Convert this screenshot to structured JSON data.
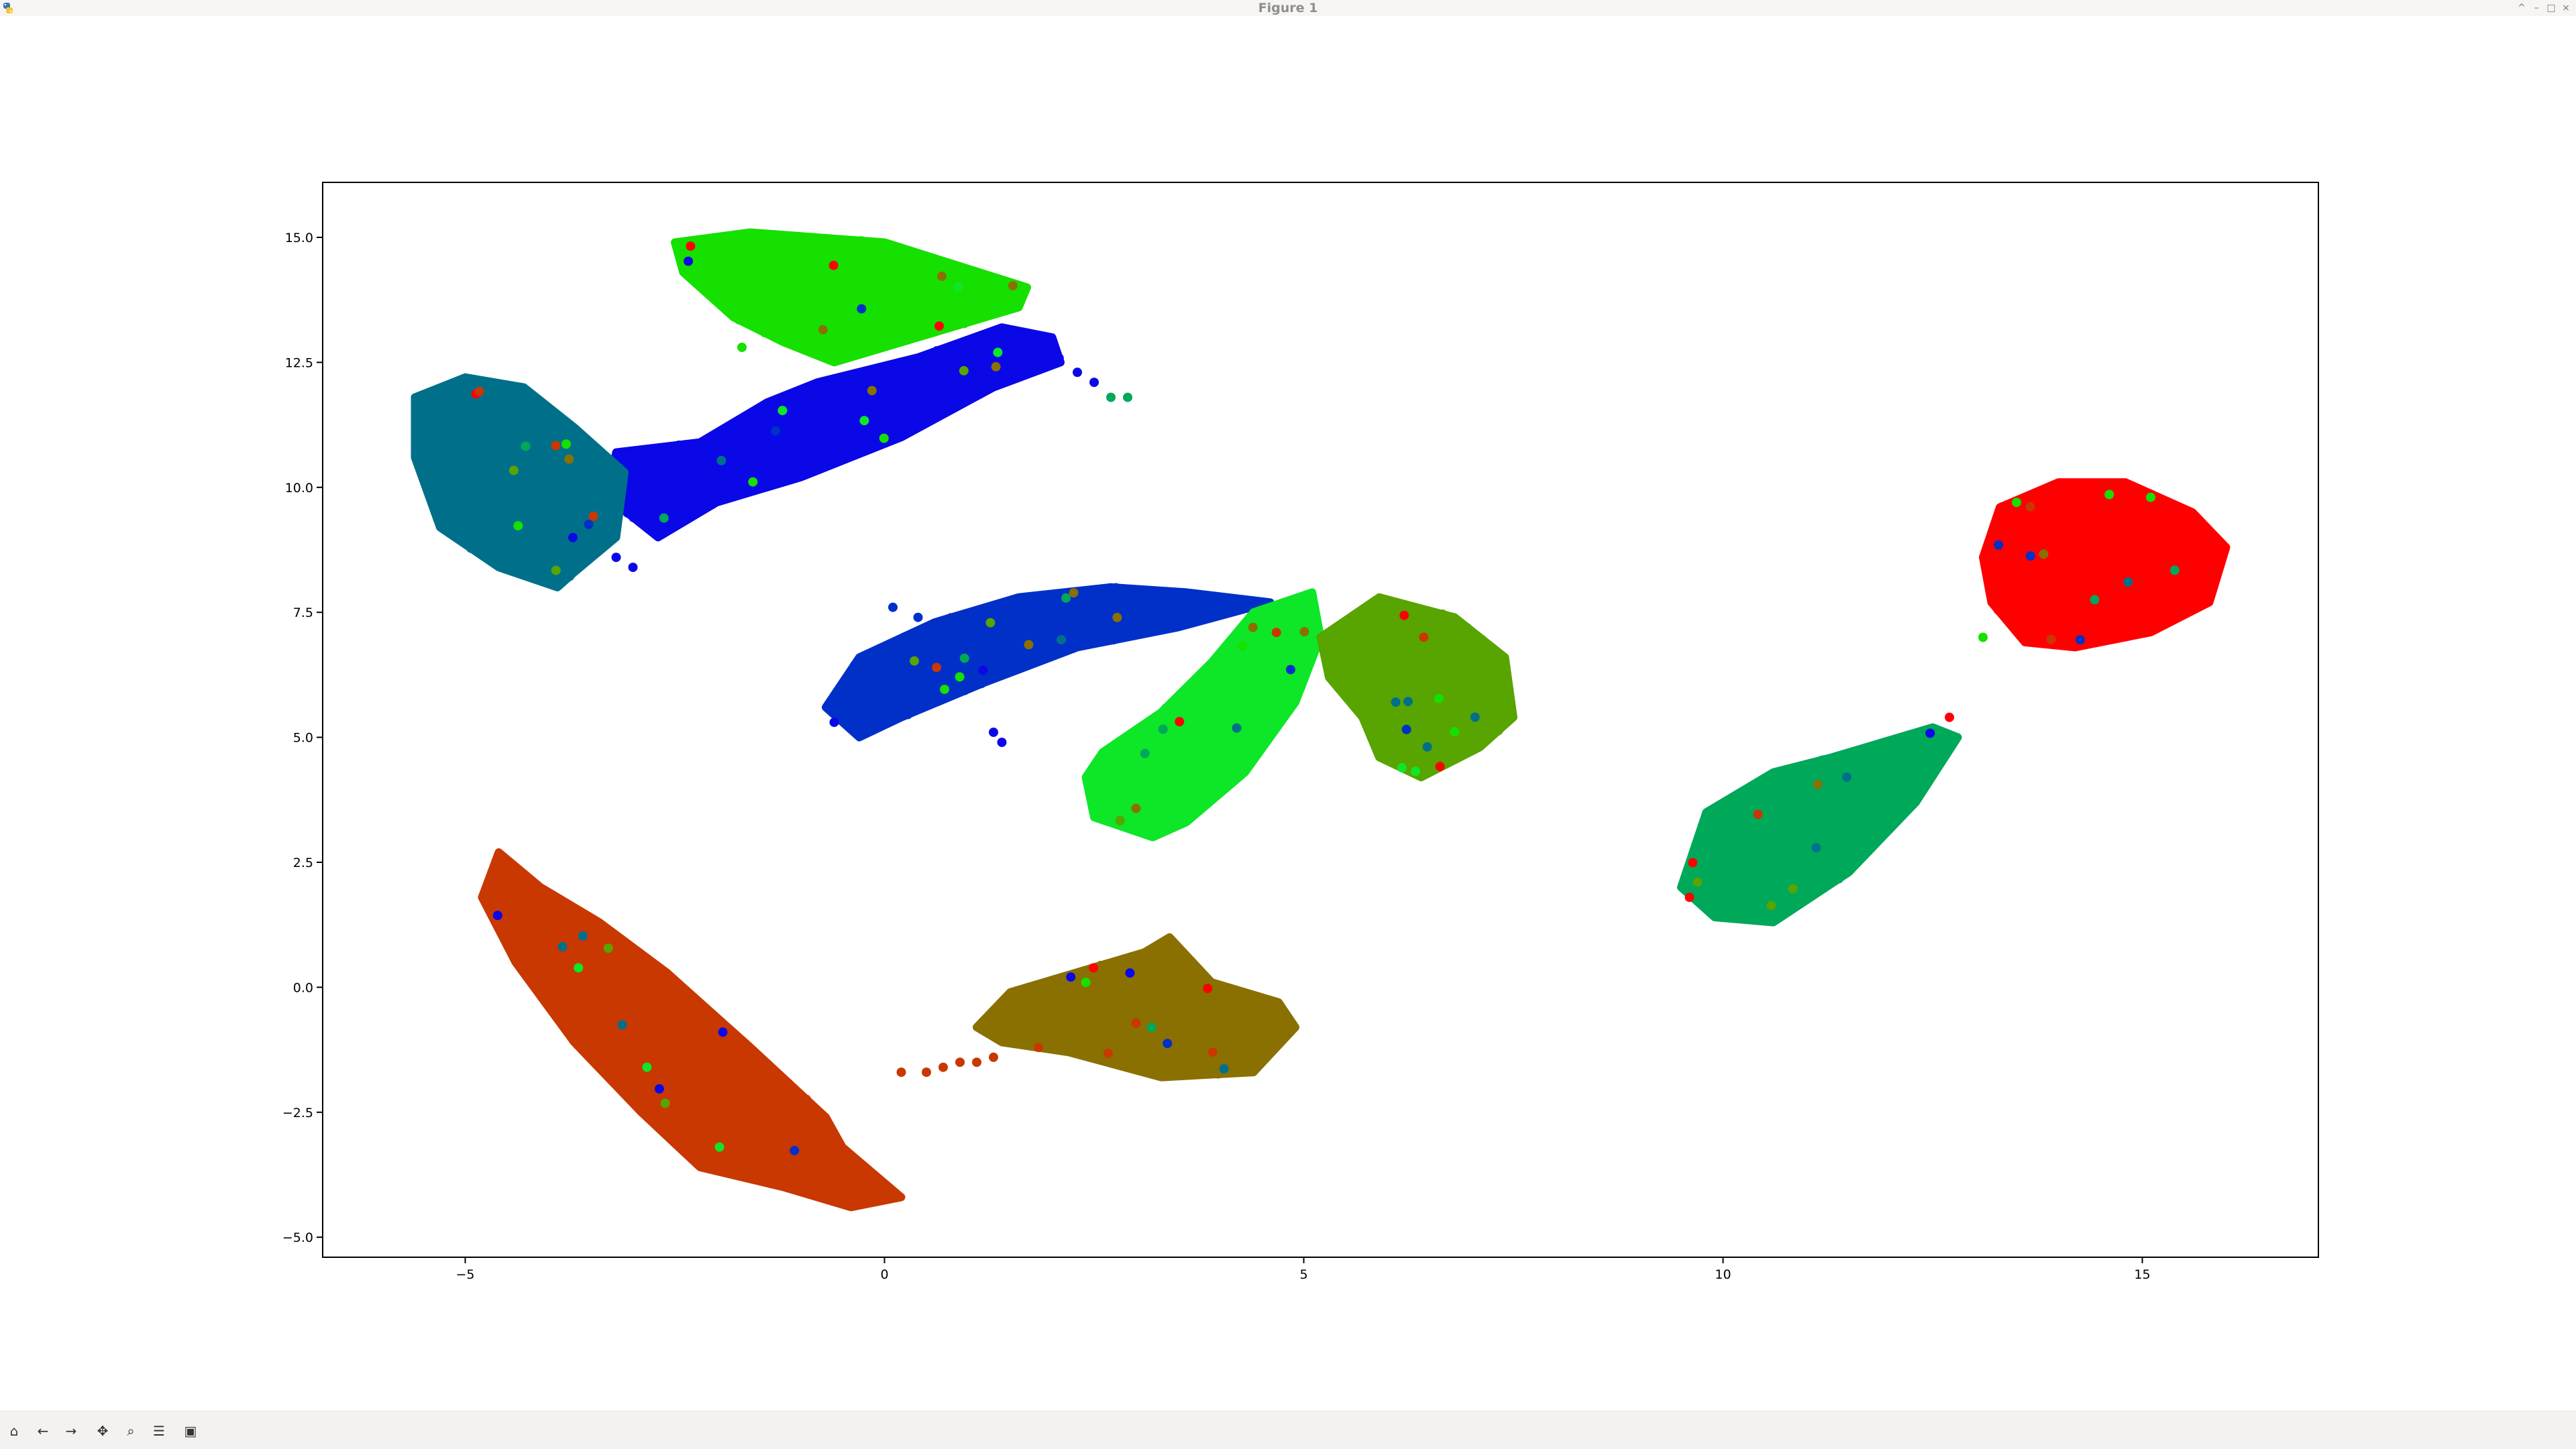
{
  "window": {
    "title": "Figure 1",
    "controls": [
      "^",
      "–",
      "□",
      "×"
    ]
  },
  "toolbar": {
    "buttons": [
      {
        "name": "home-button",
        "icon": "home-icon",
        "glyph": "⌂"
      },
      {
        "name": "back-button",
        "icon": "arrow-left-icon",
        "glyph": "←"
      },
      {
        "name": "forward-button",
        "icon": "arrow-right-icon",
        "glyph": "→"
      },
      {
        "name": "pan-button",
        "icon": "move-icon",
        "glyph": "✥"
      },
      {
        "name": "zoom-button",
        "icon": "magnifier-icon",
        "glyph": "⌕"
      },
      {
        "name": "configure-subplots-button",
        "icon": "sliders-icon",
        "glyph": "☰"
      },
      {
        "name": "save-button",
        "icon": "floppy-disk-icon",
        "glyph": "▣"
      }
    ]
  },
  "chart_data": {
    "type": "scatter",
    "title": "",
    "xlabel": "",
    "ylabel": "",
    "xlim": [
      -6.7,
      17.1
    ],
    "ylim": [
      -5.4,
      16.1
    ],
    "xticks": [
      -5,
      0,
      5,
      10,
      15
    ],
    "xtick_labels": [
      "−5",
      "0",
      "5",
      "10",
      "15"
    ],
    "yticks": [
      -5.0,
      -2.5,
      0.0,
      2.5,
      5.0,
      7.5,
      10.0,
      12.5,
      15.0
    ],
    "ytick_labels": [
      "−5.0",
      "−2.5",
      "0.0",
      "2.5",
      "5.0",
      "7.5",
      "10.0",
      "12.5",
      "15.0"
    ],
    "grid": false,
    "legend": "none",
    "clusters": [
      {
        "color": "#16e000",
        "polygon": [
          [
            -2.5,
            14.9
          ],
          [
            -1.6,
            15.1
          ],
          [
            0,
            14.9
          ],
          [
            1.7,
            14.0
          ],
          [
            1.6,
            13.6
          ],
          [
            0.6,
            13.1
          ],
          [
            -0.6,
            12.5
          ],
          [
            -1.2,
            12.9
          ],
          [
            -1.8,
            13.4
          ],
          [
            -2.4,
            14.3
          ]
        ]
      },
      {
        "color": "#0a08e6",
        "polygon": [
          [
            -3.2,
            10.7
          ],
          [
            -2.2,
            10.9
          ],
          [
            -1.4,
            11.7
          ],
          [
            -0.8,
            12.1
          ],
          [
            0.4,
            12.6
          ],
          [
            1.4,
            13.2
          ],
          [
            2.0,
            13.0
          ],
          [
            2.1,
            12.5
          ],
          [
            1.3,
            12.0
          ],
          [
            0.2,
            11.0
          ],
          [
            -1.0,
            10.2
          ],
          [
            -2.0,
            9.7
          ],
          [
            -2.7,
            9.0
          ],
          [
            -3.3,
            9.8
          ]
        ]
      },
      {
        "color": "#00708a",
        "polygon": [
          [
            -5.6,
            11.8
          ],
          [
            -5.0,
            12.2
          ],
          [
            -4.3,
            12.0
          ],
          [
            -3.7,
            11.2
          ],
          [
            -3.1,
            10.3
          ],
          [
            -3.2,
            9.0
          ],
          [
            -3.7,
            8.3
          ],
          [
            -3.9,
            8.0
          ],
          [
            -4.6,
            8.4
          ],
          [
            -5.3,
            9.2
          ],
          [
            -5.6,
            10.6
          ]
        ]
      },
      {
        "color": "#0030c8",
        "polygon": [
          [
            -0.7,
            5.6
          ],
          [
            -0.3,
            6.6
          ],
          [
            0.6,
            7.3
          ],
          [
            1.6,
            7.8
          ],
          [
            2.7,
            8.0
          ],
          [
            3.6,
            7.9
          ],
          [
            4.6,
            7.7
          ],
          [
            3.5,
            7.2
          ],
          [
            2.3,
            6.8
          ],
          [
            1.2,
            6.1
          ],
          [
            0.2,
            5.4
          ],
          [
            -0.3,
            5.0
          ]
        ]
      },
      {
        "color": "#0ee628",
        "polygon": [
          [
            2.6,
            4.7
          ],
          [
            3.3,
            5.5
          ],
          [
            3.9,
            6.5
          ],
          [
            4.4,
            7.5
          ],
          [
            5.1,
            7.9
          ],
          [
            5.2,
            7.0
          ],
          [
            4.9,
            5.7
          ],
          [
            4.3,
            4.3
          ],
          [
            3.6,
            3.3
          ],
          [
            3.2,
            3.0
          ],
          [
            2.5,
            3.4
          ],
          [
            2.4,
            4.2
          ]
        ]
      },
      {
        "color": "#58a400",
        "polygon": [
          [
            5.2,
            7.0
          ],
          [
            5.9,
            7.8
          ],
          [
            6.8,
            7.4
          ],
          [
            7.4,
            6.6
          ],
          [
            7.5,
            5.4
          ],
          [
            7.1,
            4.8
          ],
          [
            6.4,
            4.2
          ],
          [
            5.9,
            4.6
          ],
          [
            5.7,
            5.4
          ],
          [
            5.3,
            6.2
          ]
        ]
      },
      {
        "color": "#ff0000",
        "polygon": [
          [
            13.3,
            9.6
          ],
          [
            14.0,
            10.1
          ],
          [
            14.8,
            10.1
          ],
          [
            15.6,
            9.5
          ],
          [
            16.0,
            8.8
          ],
          [
            15.8,
            7.7
          ],
          [
            15.1,
            7.1
          ],
          [
            14.2,
            6.8
          ],
          [
            13.6,
            6.9
          ],
          [
            13.2,
            7.7
          ],
          [
            13.1,
            8.6
          ]
        ]
      },
      {
        "color": "#00a85a",
        "polygon": [
          [
            9.5,
            2.0
          ],
          [
            9.8,
            3.5
          ],
          [
            10.6,
            4.3
          ],
          [
            11.3,
            4.6
          ],
          [
            12.5,
            5.2
          ],
          [
            12.8,
            5.0
          ],
          [
            12.3,
            3.7
          ],
          [
            11.5,
            2.3
          ],
          [
            10.6,
            1.3
          ],
          [
            9.9,
            1.4
          ]
        ]
      },
      {
        "color": "#c83800",
        "polygon": [
          [
            -4.6,
            2.7
          ],
          [
            -4.1,
            2.0
          ],
          [
            -3.4,
            1.3
          ],
          [
            -2.6,
            0.3
          ],
          [
            -1.6,
            -1.2
          ],
          [
            -0.7,
            -2.6
          ],
          [
            -0.5,
            -3.2
          ],
          [
            0.2,
            -4.2
          ],
          [
            -0.4,
            -4.4
          ],
          [
            -1.2,
            -4.0
          ],
          [
            -2.2,
            -3.6
          ],
          [
            -2.9,
            -2.5
          ],
          [
            -3.7,
            -1.1
          ],
          [
            -4.4,
            0.5
          ],
          [
            -4.8,
            1.8
          ]
        ]
      },
      {
        "color": "#8a7000",
        "polygon": [
          [
            1.1,
            -0.8
          ],
          [
            1.5,
            -0.1
          ],
          [
            2.3,
            0.3
          ],
          [
            3.1,
            0.7
          ],
          [
            3.4,
            1.0
          ],
          [
            3.9,
            0.1
          ],
          [
            4.7,
            -0.3
          ],
          [
            4.9,
            -0.8
          ],
          [
            4.4,
            -1.7
          ],
          [
            3.3,
            -1.8
          ],
          [
            2.2,
            -1.3
          ],
          [
            1.4,
            -1.1
          ]
        ]
      }
    ],
    "strays": [
      {
        "color": "#c83800",
        "points": [
          [
            0.2,
            -1.7
          ],
          [
            0.5,
            -1.7
          ],
          [
            0.7,
            -1.6
          ],
          [
            0.9,
            -1.5
          ],
          [
            1.1,
            -1.5
          ],
          [
            1.3,
            -1.4
          ]
        ]
      },
      {
        "color": "#00a85a",
        "points": [
          [
            2.7,
            11.8
          ],
          [
            2.9,
            11.8
          ]
        ]
      },
      {
        "color": "#0a08e6",
        "points": [
          [
            2.3,
            12.3
          ],
          [
            2.5,
            12.1
          ],
          [
            -3.2,
            8.6
          ],
          [
            -3.0,
            8.4
          ],
          [
            1.3,
            5.1
          ],
          [
            1.4,
            4.9
          ],
          [
            -0.6,
            5.3
          ]
        ]
      },
      {
        "color": "#0030c8",
        "points": [
          [
            0.1,
            7.6
          ],
          [
            0.4,
            7.4
          ]
        ]
      },
      {
        "color": "#ff0000",
        "points": [
          [
            12.7,
            5.4
          ],
          [
            9.6,
            1.8
          ]
        ]
      },
      {
        "color": "#16e000",
        "points": [
          [
            -1.7,
            12.8
          ],
          [
            13.5,
            9.7
          ],
          [
            15.1,
            9.8
          ],
          [
            13.1,
            7.0
          ]
        ]
      }
    ]
  }
}
